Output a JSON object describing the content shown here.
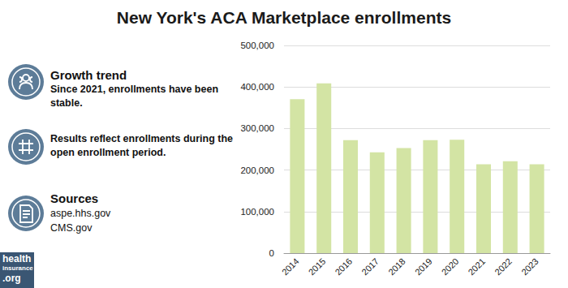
{
  "chart_data": {
    "type": "bar",
    "title": "New York's ACA Marketplace enrollments",
    "categories": [
      "2014",
      "2015",
      "2016",
      "2017",
      "2018",
      "2019",
      "2020",
      "2021",
      "2022",
      "2023"
    ],
    "values": [
      370451,
      408841,
      271964,
      242880,
      253102,
      271873,
      273000,
      214000,
      221000,
      214000
    ],
    "color": "#d3e4a4",
    "ylim": [
      0,
      500000
    ],
    "yticks": [
      0,
      {
        "value": 100000,
        "label": "100,000"
      },
      {
        "value": 200000,
        "label": "200,000"
      },
      {
        "value": 300000,
        "label": "300,000"
      },
      {
        "value": 400000,
        "label": "400,000"
      },
      {
        "value": 500000,
        "label": "500,000"
      }
    ],
    "grid": true
  },
  "sidebar": {
    "growth": {
      "heading": "Growth trend",
      "text": "Since 2021, enrollments have been stable."
    },
    "note": {
      "text": "Results reflect enrollments during the open enrollment period."
    },
    "sources": {
      "heading": "Sources",
      "lines": [
        "aspe.hhs.gov",
        "CMS.gov"
      ]
    },
    "logo": [
      "health",
      "insurance",
      ".org"
    ]
  }
}
